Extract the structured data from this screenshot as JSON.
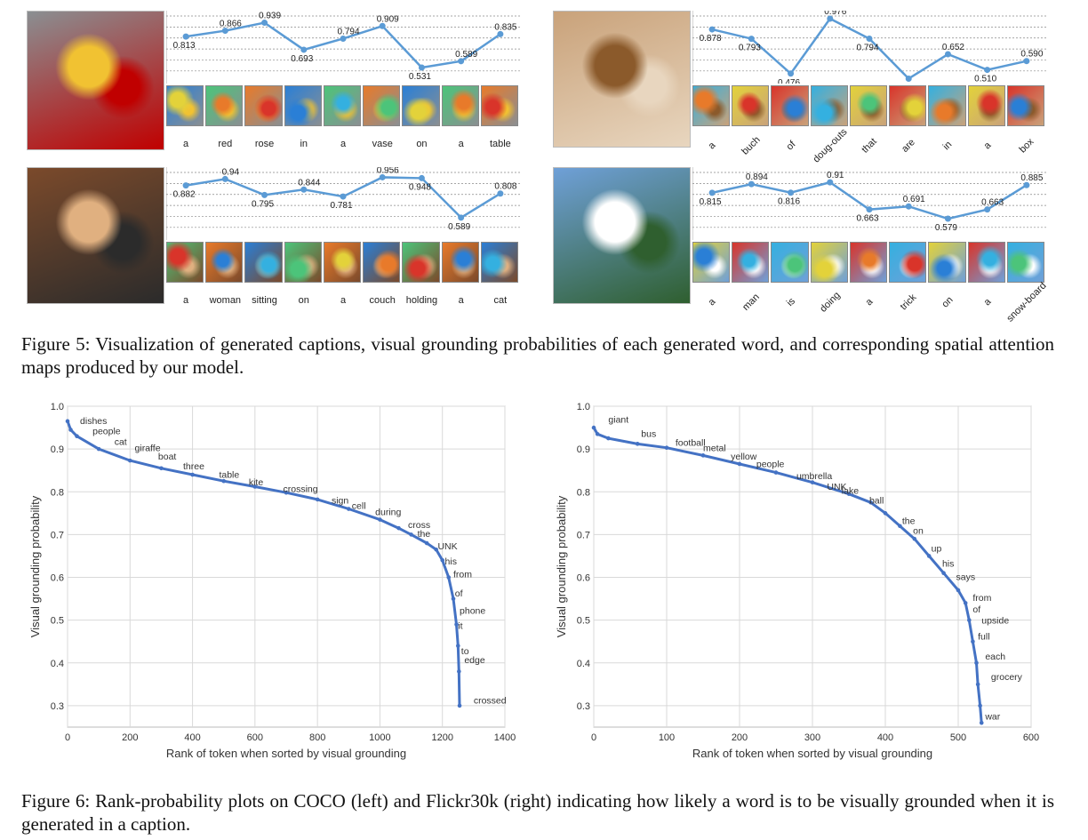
{
  "figure5": {
    "caption": "Figure 5: Visualization of generated captions, visual grounding probabilities of each generated word, and corresponding spatial attention maps produced by our model.",
    "panels": [
      {
        "id": "flowers",
        "photo": "flower vase on table",
        "words": [
          "a",
          "red",
          "rose",
          "in",
          "a",
          "vase",
          "on",
          "a",
          "table"
        ],
        "values": [
          0.813,
          0.866,
          0.939,
          0.693,
          0.794,
          0.909,
          0.531,
          0.589,
          0.835
        ],
        "value_labels": [
          "0.813",
          "0.866",
          "0.939",
          "0.693",
          "0.794",
          "0.909",
          "0.531",
          "0.589",
          "0.835"
        ],
        "rotated": false
      },
      {
        "id": "donuts",
        "photo": "box of doughnuts",
        "words": [
          "a",
          "buch",
          "of",
          "doug-outs",
          "that",
          "are",
          "in",
          "a",
          "box"
        ],
        "values": [
          0.878,
          0.793,
          0.476,
          0.976,
          0.794,
          0.43,
          0.652,
          0.51,
          0.59
        ],
        "value_labels": [
          "0.878",
          "0.793",
          "0.476",
          "0.976",
          "0.794",
          "0.430",
          "0.652",
          "0.510",
          "0.590"
        ],
        "rotated": true
      },
      {
        "id": "woman",
        "photo": "woman holding a cat",
        "words": [
          "a",
          "woman",
          "sitting",
          "on",
          "a",
          "couch",
          "holding",
          "a",
          "cat"
        ],
        "values": [
          0.882,
          0.94,
          0.795,
          0.844,
          0.781,
          0.956,
          0.948,
          0.589,
          0.808
        ],
        "value_labels": [
          "0.882",
          "0.94",
          "0.795",
          "0.844",
          "0.781",
          "0.956",
          "0.948",
          "0.589",
          "0.808"
        ],
        "rotated": false
      },
      {
        "id": "snowboard",
        "photo": "snowboarder doing a trick",
        "words": [
          "a",
          "man",
          "is",
          "doing",
          "a",
          "trick",
          "on",
          "a",
          "snow-board"
        ],
        "values": [
          0.815,
          0.894,
          0.816,
          0.91,
          0.663,
          0.691,
          0.579,
          0.663,
          0.885
        ],
        "value_labels": [
          "0.815",
          "0.894",
          "0.816",
          "0.91",
          "0.663",
          "0.691",
          "0.579",
          "0.663",
          "0.885"
        ],
        "rotated": true
      }
    ]
  },
  "figure6": {
    "caption": "Figure 6: Rank-probability plots on COCO (left) and Flickr30k (right) indicating how likely a word is to be visually grounded when it is generated in a caption."
  },
  "chart_data": [
    {
      "type": "line",
      "dataset": "COCO",
      "xlabel": "Rank of token when sorted by visual grounding",
      "ylabel": "Visual grounding probability",
      "xlim": [
        0,
        1400
      ],
      "ylim": [
        0.25,
        1.0
      ],
      "xticks": [
        0,
        200,
        400,
        600,
        800,
        1000,
        1200,
        1400
      ],
      "yticks": [
        0.3,
        0.4,
        0.5,
        0.6,
        0.7,
        0.8,
        0.9,
        1.0
      ],
      "grid": true,
      "color": "#4472c4",
      "curve": [
        [
          0,
          0.965
        ],
        [
          10,
          0.945
        ],
        [
          30,
          0.93
        ],
        [
          100,
          0.9
        ],
        [
          200,
          0.873
        ],
        [
          300,
          0.855
        ],
        [
          400,
          0.84
        ],
        [
          500,
          0.825
        ],
        [
          600,
          0.812
        ],
        [
          700,
          0.798
        ],
        [
          800,
          0.782
        ],
        [
          900,
          0.76
        ],
        [
          1000,
          0.735
        ],
        [
          1060,
          0.715
        ],
        [
          1100,
          0.7
        ],
        [
          1150,
          0.68
        ],
        [
          1180,
          0.665
        ],
        [
          1200,
          0.64
        ],
        [
          1220,
          0.6
        ],
        [
          1235,
          0.55
        ],
        [
          1245,
          0.49
        ],
        [
          1250,
          0.44
        ],
        [
          1253,
          0.38
        ],
        [
          1255,
          0.3
        ]
      ],
      "annotations": [
        {
          "word": "dishes",
          "x": 40,
          "y": 0.958
        },
        {
          "word": "people",
          "x": 80,
          "y": 0.935
        },
        {
          "word": "cat",
          "x": 150,
          "y": 0.91
        },
        {
          "word": "giraffe",
          "x": 215,
          "y": 0.895
        },
        {
          "word": "boat",
          "x": 290,
          "y": 0.875
        },
        {
          "word": "three",
          "x": 370,
          "y": 0.852
        },
        {
          "word": "table",
          "x": 485,
          "y": 0.833
        },
        {
          "word": "kite",
          "x": 580,
          "y": 0.815
        },
        {
          "word": "crossing",
          "x": 690,
          "y": 0.8
        },
        {
          "word": "sign",
          "x": 845,
          "y": 0.772
        },
        {
          "word": "cell",
          "x": 910,
          "y": 0.76
        },
        {
          "word": "during",
          "x": 985,
          "y": 0.745
        },
        {
          "word": "cross",
          "x": 1090,
          "y": 0.715
        },
        {
          "word": "the",
          "x": 1120,
          "y": 0.695
        },
        {
          "word": "UNK",
          "x": 1185,
          "y": 0.665
        },
        {
          "word": "his",
          "x": 1208,
          "y": 0.63
        },
        {
          "word": "from",
          "x": 1235,
          "y": 0.6
        },
        {
          "word": "of",
          "x": 1240,
          "y": 0.555
        },
        {
          "word": "phone",
          "x": 1255,
          "y": 0.515
        },
        {
          "word": "it",
          "x": 1250,
          "y": 0.48
        },
        {
          "word": "to",
          "x": 1260,
          "y": 0.42
        },
        {
          "word": "edge",
          "x": 1270,
          "y": 0.4
        },
        {
          "word": "crossed",
          "x": 1300,
          "y": 0.305
        }
      ]
    },
    {
      "type": "line",
      "dataset": "Flickr30k",
      "xlabel": "Rank of token when sorted by visual grounding",
      "ylabel": "Visual grounding probability",
      "xlim": [
        0,
        600
      ],
      "ylim": [
        0.25,
        1.0
      ],
      "xticks": [
        0,
        100,
        200,
        300,
        400,
        500,
        600
      ],
      "yticks": [
        0.3,
        0.4,
        0.5,
        0.6,
        0.7,
        0.8,
        0.9,
        1.0
      ],
      "grid": true,
      "color": "#4472c4",
      "curve": [
        [
          0,
          0.95
        ],
        [
          5,
          0.935
        ],
        [
          20,
          0.925
        ],
        [
          60,
          0.912
        ],
        [
          100,
          0.903
        ],
        [
          150,
          0.885
        ],
        [
          200,
          0.865
        ],
        [
          250,
          0.845
        ],
        [
          300,
          0.822
        ],
        [
          350,
          0.795
        ],
        [
          380,
          0.775
        ],
        [
          400,
          0.75
        ],
        [
          420,
          0.72
        ],
        [
          440,
          0.69
        ],
        [
          460,
          0.65
        ],
        [
          480,
          0.61
        ],
        [
          500,
          0.57
        ],
        [
          510,
          0.54
        ],
        [
          515,
          0.5
        ],
        [
          520,
          0.45
        ],
        [
          525,
          0.4
        ],
        [
          527,
          0.35
        ],
        [
          530,
          0.3
        ],
        [
          532,
          0.26
        ]
      ],
      "annotations": [
        {
          "word": "giant",
          "x": 20,
          "y": 0.962
        },
        {
          "word": "bus",
          "x": 65,
          "y": 0.928
        },
        {
          "word": "football",
          "x": 112,
          "y": 0.908
        },
        {
          "word": "metal",
          "x": 150,
          "y": 0.895
        },
        {
          "word": "yellow",
          "x": 188,
          "y": 0.875
        },
        {
          "word": "people",
          "x": 223,
          "y": 0.858
        },
        {
          "word": "umbrella",
          "x": 278,
          "y": 0.83
        },
        {
          "word": "UNK",
          "x": 320,
          "y": 0.805
        },
        {
          "word": "lake",
          "x": 340,
          "y": 0.795
        },
        {
          "word": "ball",
          "x": 378,
          "y": 0.772
        },
        {
          "word": "the",
          "x": 423,
          "y": 0.725
        },
        {
          "word": "on",
          "x": 438,
          "y": 0.702
        },
        {
          "word": "up",
          "x": 463,
          "y": 0.66
        },
        {
          "word": "his",
          "x": 478,
          "y": 0.625
        },
        {
          "word": "says",
          "x": 497,
          "y": 0.594
        },
        {
          "word": "from",
          "x": 520,
          "y": 0.545
        },
        {
          "word": "of",
          "x": 520,
          "y": 0.518
        },
        {
          "word": "upside",
          "x": 532,
          "y": 0.492
        },
        {
          "word": "full",
          "x": 527,
          "y": 0.455
        },
        {
          "word": "each",
          "x": 537,
          "y": 0.408
        },
        {
          "word": "grocery",
          "x": 545,
          "y": 0.36
        },
        {
          "word": "war",
          "x": 537,
          "y": 0.268
        }
      ]
    }
  ]
}
